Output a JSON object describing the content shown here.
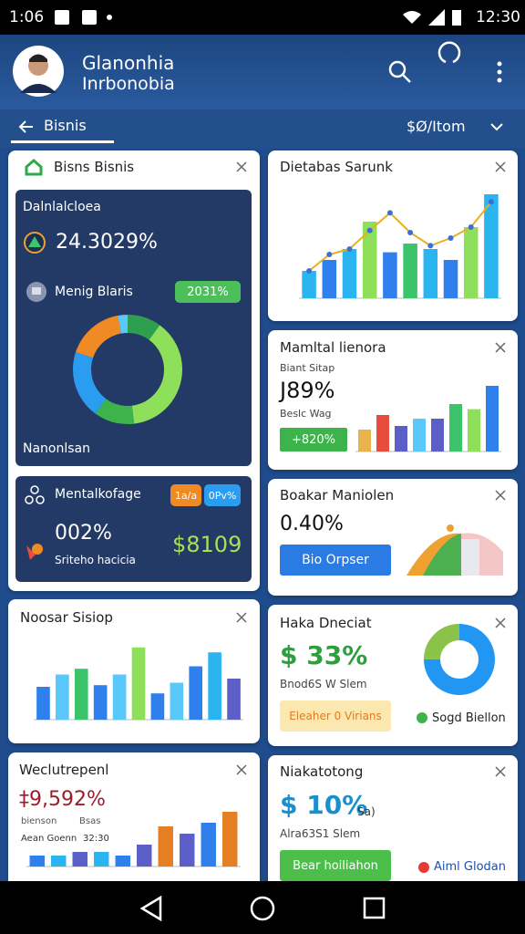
{
  "status_bar": {
    "time": "1:06",
    "clock": "12:30"
  },
  "header": {
    "name": "Glanonhia",
    "subtitle": "Inrbonobia"
  },
  "nav": {
    "back_label": "Bisnis",
    "filter": "$Ø/Itom"
  },
  "card_business": {
    "title": "Bisns Bisnis",
    "panel_label": "Dalnlalcloea",
    "panel_value": "24.3029%",
    "metric_label": "Menig Blaris",
    "metric_badge": "2031%",
    "donut": {
      "segments": [
        {
          "value": 10,
          "color": "#2e9e4f"
        },
        {
          "value": 38,
          "color": "#8ee05a"
        },
        {
          "value": 12,
          "color": "#3cb44b"
        },
        {
          "value": 20,
          "color": "#2b9df0"
        },
        {
          "value": 17,
          "color": "#f08a24"
        },
        {
          "value": 3,
          "color": "#5ac8fa"
        }
      ]
    },
    "footer": "Nanonlsan",
    "sub_title": "Mentalkofage",
    "badge_a": "1a/a",
    "badge_b": "0Pv%",
    "sub_value": "002%",
    "sub_caption": "Sriteho hacicia",
    "sub_amount": "$8109"
  },
  "card_noosar": {
    "title": "Noosar Sisiop",
    "chart": {
      "ylim": [
        0,
        100
      ],
      "bars": [
        {
          "value": 40,
          "color": "#2f80ed"
        },
        {
          "value": 55,
          "color": "#5ac8fa"
        },
        {
          "value": 62,
          "color": "#3cc46a"
        },
        {
          "value": 42,
          "color": "#2f80ed"
        },
        {
          "value": 55,
          "color": "#5ac8fa"
        },
        {
          "value": 88,
          "color": "#8ee05a"
        },
        {
          "value": 32,
          "color": "#2f80ed"
        },
        {
          "value": 45,
          "color": "#5ac8fa"
        },
        {
          "value": 65,
          "color": "#2f80ed"
        },
        {
          "value": 82,
          "color": "#2bb5f0"
        },
        {
          "value": 50,
          "color": "#5b5fc7"
        }
      ]
    }
  },
  "card_weclut": {
    "title": "Weclutrepenl",
    "value": "‡9,592%",
    "label_a": "bienson",
    "label_b": "Bsas",
    "label_c": "Aean Goenn",
    "label_d": "32:30",
    "chart": {
      "ylim": [
        0,
        100
      ],
      "bars": [
        {
          "value": 15,
          "color": "#2f80ed"
        },
        {
          "value": 15,
          "color": "#2bb5f0"
        },
        {
          "value": 20,
          "color": "#5b5fc7"
        },
        {
          "value": 20,
          "color": "#2bb5f0"
        },
        {
          "value": 15,
          "color": "#2f80ed"
        },
        {
          "value": 30,
          "color": "#5b5fc7"
        },
        {
          "value": 55,
          "color": "#e67e22"
        },
        {
          "value": 45,
          "color": "#5b5fc7"
        },
        {
          "value": 60,
          "color": "#2f80ed"
        },
        {
          "value": 75,
          "color": "#e67e22"
        }
      ]
    }
  },
  "card_dietabas": {
    "title": "Dietabas Sarunk",
    "chart": {
      "ylim": [
        0,
        100
      ],
      "bars": [
        {
          "value": 25,
          "color": "#2bb5f0"
        },
        {
          "value": 35,
          "color": "#2f80ed"
        },
        {
          "value": 45,
          "color": "#2bb5f0"
        },
        {
          "value": 70,
          "color": "#8ee05a"
        },
        {
          "value": 42,
          "color": "#2f80ed"
        },
        {
          "value": 50,
          "color": "#3cc46a"
        },
        {
          "value": 45,
          "color": "#2bb5f0"
        },
        {
          "value": 35,
          "color": "#2f80ed"
        },
        {
          "value": 65,
          "color": "#8ee05a"
        },
        {
          "value": 95,
          "color": "#2bb5f0"
        }
      ],
      "line": {
        "color": "#e8b020",
        "values": [
          25,
          40,
          45,
          62,
          78,
          60,
          48,
          55,
          65,
          88
        ]
      }
    }
  },
  "card_mamltal": {
    "title": "Mamltal lienora",
    "label": "Biant Sitap",
    "value": "J89%",
    "caption": "Beslc Wag",
    "badge": "+820%",
    "chart": {
      "ylim": [
        0,
        100
      ],
      "bars": [
        {
          "value": 30,
          "color": "#e8b34a"
        },
        {
          "value": 50,
          "color": "#e74c3c"
        },
        {
          "value": 35,
          "color": "#5b5fc7"
        },
        {
          "value": 45,
          "color": "#5ac8fa"
        },
        {
          "value": 45,
          "color": "#5b5fc7"
        },
        {
          "value": 65,
          "color": "#3cc46a"
        },
        {
          "value": 58,
          "color": "#8ee05a"
        },
        {
          "value": 90,
          "color": "#2f80ed"
        }
      ]
    }
  },
  "card_boakar": {
    "title": "Boakar Maniolen",
    "value": "0.40%",
    "button": "Bio Orpser"
  },
  "card_haka": {
    "title": "Haka Dneciat",
    "value": "$ 33%",
    "caption": "Bnod6S W Slem",
    "button": "Eleaher 0 Virians",
    "donut": {
      "segments": [
        {
          "value": 75,
          "color": "#2196f3"
        },
        {
          "value": 25,
          "color": "#8bc34a"
        }
      ]
    },
    "legend": "Sogd Biellon"
  },
  "card_niaka": {
    "title": "Niakatotong",
    "value": "$ 10%",
    "suffix": "Sa)",
    "caption": "Alra63S1 Slem",
    "button": "Bear hoiliahon",
    "link": "Aiml Glodan"
  }
}
